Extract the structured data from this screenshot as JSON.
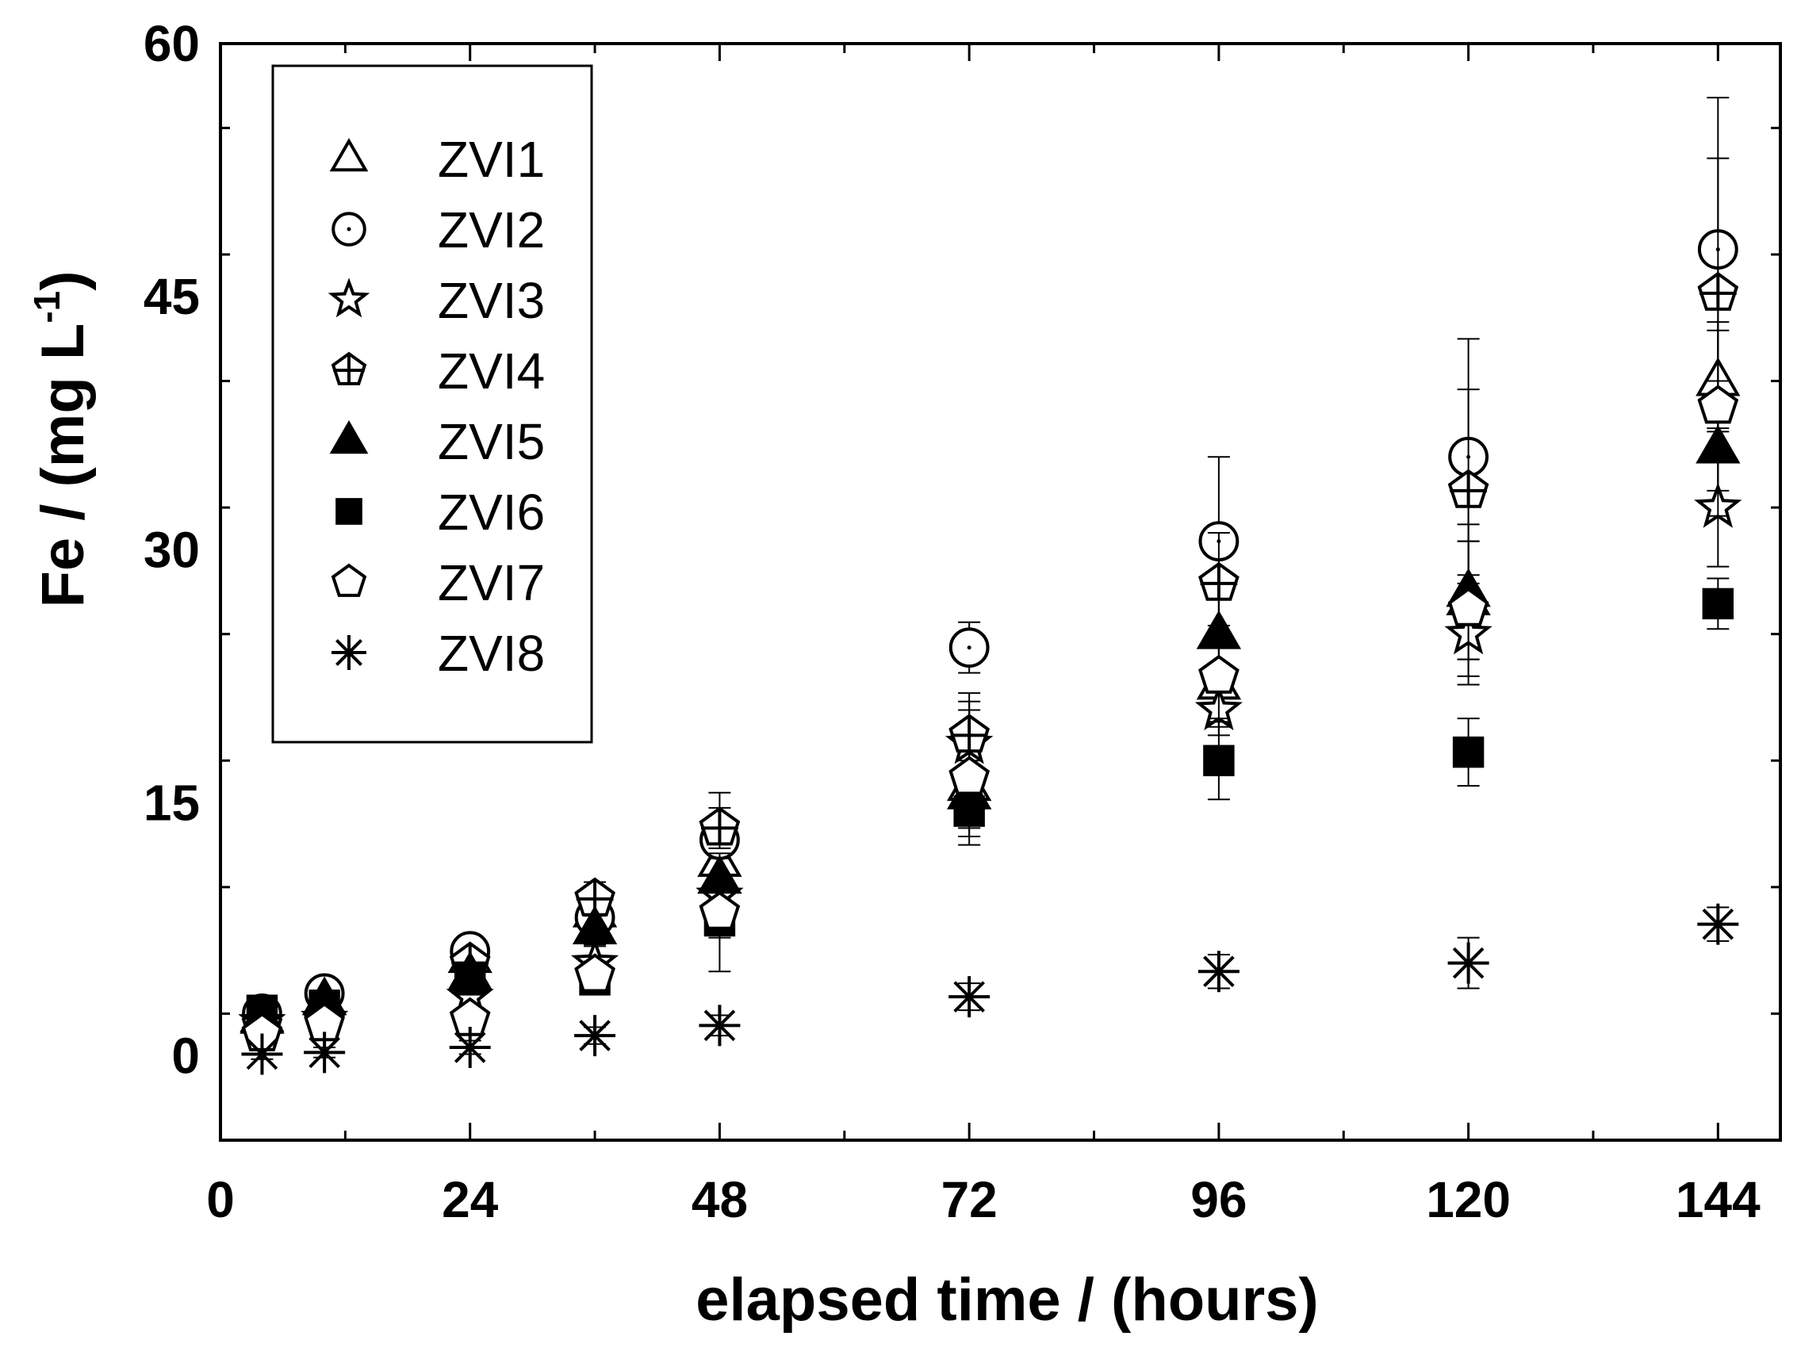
{
  "chart_data": {
    "type": "scatter",
    "xlabel": "elapsed time / (hours)",
    "ylabel_main": "Fe / (mg L",
    "ylabel_sup": "-1",
    "ylabel_close": ")",
    "xlim": [
      0,
      150
    ],
    "ylim": [
      -5,
      60
    ],
    "xticks": [
      0,
      24,
      48,
      72,
      96,
      120,
      144
    ],
    "yticks": [
      0,
      15,
      30,
      45,
      60
    ],
    "grid": false,
    "legend_position": "top-left",
    "series": [
      {
        "name": "ZVI1",
        "marker": "triangle-open",
        "points": [
          [
            4,
            2.2,
            0.4
          ],
          [
            10,
            3.3,
            0.5
          ],
          [
            24,
            5.8,
            0.8
          ],
          [
            36,
            8.5,
            0.9
          ],
          [
            48,
            11.5,
            1.2
          ],
          [
            72,
            16,
            2
          ],
          [
            96,
            22,
            2.5
          ],
          [
            120,
            27,
            3.5
          ],
          [
            144,
            40,
            3
          ]
        ]
      },
      {
        "name": "ZVI2",
        "marker": "circle-dot",
        "points": [
          [
            4,
            2.5,
            0.4
          ],
          [
            10,
            3.7,
            0.5
          ],
          [
            24,
            6.2,
            0.7
          ],
          [
            36,
            8.2,
            0.9
          ],
          [
            48,
            12.8,
            2.8
          ],
          [
            72,
            24.2,
            1.5
          ],
          [
            96,
            30.5,
            5
          ],
          [
            120,
            35.5,
            7
          ],
          [
            144,
            47.8,
            9
          ]
        ]
      },
      {
        "name": "ZVI3",
        "marker": "star-open",
        "points": [
          [
            4,
            2.0,
            0.4
          ],
          [
            10,
            2.2,
            0.4
          ],
          [
            24,
            3.5,
            0.6
          ],
          [
            36,
            5.5,
            1
          ],
          [
            48,
            9.5,
            1.2
          ],
          [
            72,
            18.5,
            2.5
          ],
          [
            96,
            20.5,
            1.5
          ],
          [
            120,
            25,
            3
          ],
          [
            144,
            32.5,
            3.5
          ]
        ]
      },
      {
        "name": "ZVI4",
        "marker": "pentagon-cross",
        "points": [
          [
            4,
            1.8,
            0.4
          ],
          [
            10,
            2.0,
            0.4
          ],
          [
            24,
            5.5,
            0.7
          ],
          [
            36,
            9.3,
            1
          ],
          [
            48,
            13.5,
            1.2
          ],
          [
            72,
            19,
            2.5
          ],
          [
            96,
            28,
            3
          ],
          [
            120,
            33.5,
            6
          ],
          [
            144,
            45.2,
            8
          ]
        ]
      },
      {
        "name": "ZVI5",
        "marker": "triangle-filled",
        "points": [
          [
            4,
            2.3,
            0.4
          ],
          [
            10,
            3.3,
            0.5
          ],
          [
            24,
            4.8,
            0.7
          ],
          [
            36,
            7.5,
            0.9
          ],
          [
            48,
            10.5,
            1.2
          ],
          [
            72,
            15.5,
            2
          ],
          [
            96,
            25,
            3
          ],
          [
            120,
            27.5,
            4
          ],
          [
            144,
            36,
            4
          ]
        ]
      },
      {
        "name": "ZVI6",
        "marker": "square-filled",
        "points": [
          [
            4,
            2.7,
            0.4
          ],
          [
            10,
            3.0,
            0.4
          ],
          [
            24,
            4.5,
            0.6
          ],
          [
            36,
            4.5,
            0.7
          ],
          [
            48,
            8,
            1
          ],
          [
            72,
            14.5,
            1.5
          ],
          [
            96,
            17.5,
            2.3
          ],
          [
            120,
            18,
            2
          ],
          [
            144,
            26.8,
            1.5
          ]
        ]
      },
      {
        "name": "ZVI7",
        "marker": "pentagon-open",
        "points": [
          [
            4,
            1.3,
            0.4
          ],
          [
            10,
            1.9,
            0.4
          ],
          [
            24,
            2.2,
            0.5
          ],
          [
            36,
            4.8,
            0.8
          ],
          [
            48,
            8.5,
            3.5
          ],
          [
            72,
            16.5,
            4
          ],
          [
            96,
            22.5,
            2.5
          ],
          [
            120,
            26.5,
            4
          ],
          [
            144,
            38.5,
            5
          ]
        ]
      },
      {
        "name": "ZVI8",
        "marker": "asterisk",
        "points": [
          [
            4,
            0.1,
            0.3
          ],
          [
            10,
            0.2,
            0.3
          ],
          [
            24,
            0.5,
            0.4
          ],
          [
            36,
            1.2,
            0.5
          ],
          [
            48,
            1.8,
            0.6
          ],
          [
            72,
            3.5,
            0.8
          ],
          [
            96,
            5,
            1
          ],
          [
            120,
            5.5,
            1.5
          ],
          [
            144,
            7.8,
            1
          ]
        ]
      }
    ]
  }
}
